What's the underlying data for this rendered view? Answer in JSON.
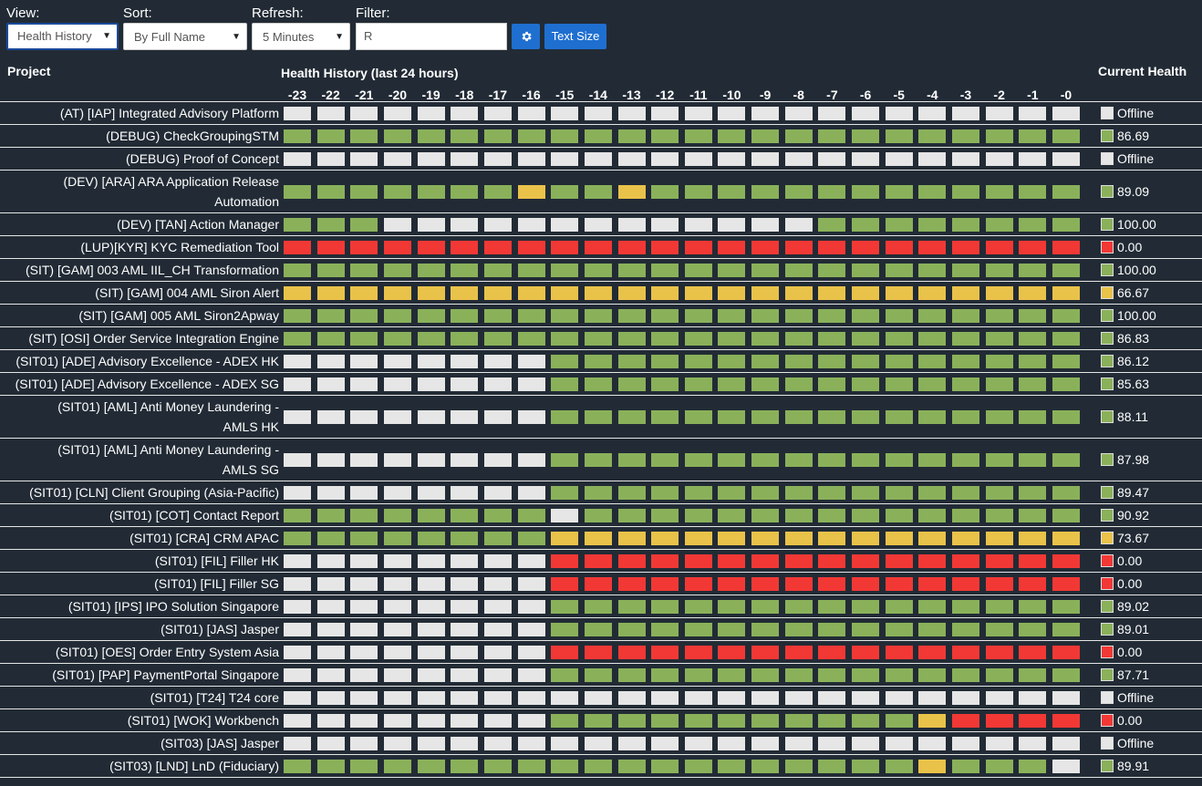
{
  "toolbar": {
    "view_label": "View:",
    "view_value": "Health History",
    "sort_label": "Sort:",
    "sort_value": "By Full Name",
    "refresh_label": "Refresh:",
    "refresh_value": "5 Minutes",
    "filter_label": "Filter:",
    "filter_value": "R",
    "settings_icon": "gear-icon",
    "text_size_label": "Text Size"
  },
  "headers": {
    "project": "Project",
    "history": "Health History (last 24 hours)",
    "current": "Current Health"
  },
  "hours": [
    "-23",
    "-22",
    "-21",
    "-20",
    "-19",
    "-18",
    "-17",
    "-16",
    "-15",
    "-14",
    "-13",
    "-12",
    "-11",
    "-10",
    "-9",
    "-8",
    "-7",
    "-6",
    "-5",
    "-4",
    "-3",
    "-2",
    "-1",
    "-0"
  ],
  "colors": {
    "G": "#8ab15a",
    "W": "#e6e6e6",
    "Y": "#e9c24a",
    "R": "#f23835"
  },
  "rows": [
    {
      "name": "(AT) [IAP] Integrated Advisory Platform",
      "history": "WWWWWWWWWWWWWWWWWWWWWWWW",
      "current": "Offline",
      "current_color": "W"
    },
    {
      "name": "(DEBUG) CheckGroupingSTM",
      "history": "GGGGGGGGGGGGGGGGGGGGGGGG",
      "current": "86.69",
      "current_color": "G"
    },
    {
      "name": "(DEBUG) Proof of Concept",
      "history": "WWWWWWWWWWWWWWWWWWWWWWWW",
      "current": "Offline",
      "current_color": "W"
    },
    {
      "name": "(DEV) [ARA] ARA Application Release Automation",
      "history": "GGGGGGGYGGYGGGGGGGGGGGGG",
      "current": "89.09",
      "current_color": "G",
      "tall": true
    },
    {
      "name": "(DEV) [TAN] Action Manager",
      "history": "GGGWWWWWWWWWWWWWGGGGGGGG",
      "current": "100.00",
      "current_color": "G"
    },
    {
      "name": "(LUP)[KYR] KYC Remediation Tool",
      "history": "RRRRRRRRRRRRRRRRRRRRRRRR",
      "current": "0.00",
      "current_color": "R"
    },
    {
      "name": "(SIT) [GAM] 003 AML IIL_CH Transformation",
      "history": "GGGGGGGGGGGGGGGGGGGGGGGG",
      "current": "100.00",
      "current_color": "G"
    },
    {
      "name": "(SIT) [GAM] 004 AML Siron Alert",
      "history": "YYYYYYYYYYYYYYYYYYYYYYYY",
      "current": "66.67",
      "current_color": "Y"
    },
    {
      "name": "(SIT) [GAM] 005 AML Siron2Apway",
      "history": "GGGGGGGGGGGGGGGGGGGGGGGG",
      "current": "100.00",
      "current_color": "G"
    },
    {
      "name": "(SIT) [OSI] Order Service Integration Engine",
      "history": "GGGGGGGGGGGGGGGGGGGGGGGG",
      "current": "86.83",
      "current_color": "G"
    },
    {
      "name": "(SIT01) [ADE] Advisory Excellence - ADEX HK",
      "history": "WWWWWWWWGGGGGGGGGGGGGGGG",
      "current": "86.12",
      "current_color": "G"
    },
    {
      "name": "(SIT01) [ADE] Advisory Excellence - ADEX SG",
      "history": "WWWWWWWWGGGGGGGGGGGGGGGG",
      "current": "85.63",
      "current_color": "G"
    },
    {
      "name": "(SIT01) [AML] Anti Money Laundering - AMLS HK",
      "history": "WWWWWWWWGGGGGGGGGGGGGGGG",
      "current": "88.11",
      "current_color": "G",
      "tall": true
    },
    {
      "name": "(SIT01) [AML] Anti Money Laundering - AMLS SG",
      "history": "WWWWWWWWGGGGGGGGGGGGGGGG",
      "current": "87.98",
      "current_color": "G",
      "tall": true
    },
    {
      "name": "(SIT01) [CLN] Client Grouping (Asia-Pacific)",
      "history": "WWWWWWWWGGGGGGGGGGGGGGGG",
      "current": "89.47",
      "current_color": "G"
    },
    {
      "name": "(SIT01) [COT] Contact Report",
      "history": "GGGGGGGGWGGGGGGGGGGGGGGG",
      "current": "90.92",
      "current_color": "G"
    },
    {
      "name": "(SIT01) [CRA] CRM APAC",
      "history": "GGGGGGGGYYYYYYYYYYYYYYYY",
      "current": "73.67",
      "current_color": "Y"
    },
    {
      "name": "(SIT01) [FIL] Filler HK",
      "history": "WWWWWWWWRRRRRRRRRRRRRRRR",
      "current": "0.00",
      "current_color": "R"
    },
    {
      "name": "(SIT01) [FIL] Filler SG",
      "history": "WWWWWWWWRRRRRRRRRRRRRRRR",
      "current": "0.00",
      "current_color": "R"
    },
    {
      "name": "(SIT01) [IPS] IPO Solution Singapore",
      "history": "WWWWWWWWGGGGGGGGGGGGGGGG",
      "current": "89.02",
      "current_color": "G"
    },
    {
      "name": "(SIT01) [JAS] Jasper",
      "history": "WWWWWWWWGGGGGGGGGGGGGGGG",
      "current": "89.01",
      "current_color": "G"
    },
    {
      "name": "(SIT01) [OES] Order Entry System Asia",
      "history": "WWWWWWWWRRRRRRRRRRRRRRRR",
      "current": "0.00",
      "current_color": "R"
    },
    {
      "name": "(SIT01) [PAP] PaymentPortal Singapore",
      "history": "WWWWWWWWGGGGGGGGGGGGGGGG",
      "current": "87.71",
      "current_color": "G"
    },
    {
      "name": "(SIT01) [T24] T24 core",
      "history": "WWWWWWWWWWWWWWWWWWWWWWWW",
      "current": "Offline",
      "current_color": "W"
    },
    {
      "name": "(SIT01) [WOK] Workbench",
      "history": "WWWWWWWWGGGGGGGGGGGYRRRR",
      "current": "0.00",
      "current_color": "R"
    },
    {
      "name": "(SIT03) [JAS] Jasper",
      "history": "WWWWWWWWWWWWWWWWWWWWWWWW",
      "current": "Offline",
      "current_color": "W"
    },
    {
      "name": "(SIT03) [LND] LnD (Fiduciary)",
      "history": "GGGGGGGGGGGGGGGGGGGYGGGW",
      "current": "89.91",
      "current_color": "G"
    }
  ]
}
